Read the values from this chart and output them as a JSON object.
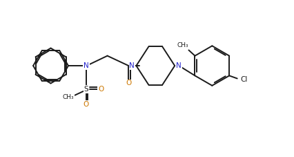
{
  "bg_color": "#ffffff",
  "line_color": "#1a1a1a",
  "N_color": "#2222cc",
  "O_color": "#cc7700",
  "figsize": [
    4.26,
    2.27
  ],
  "dpi": 100,
  "xlim": [
    0,
    9.5
  ],
  "ylim": [
    0,
    5.5
  ]
}
